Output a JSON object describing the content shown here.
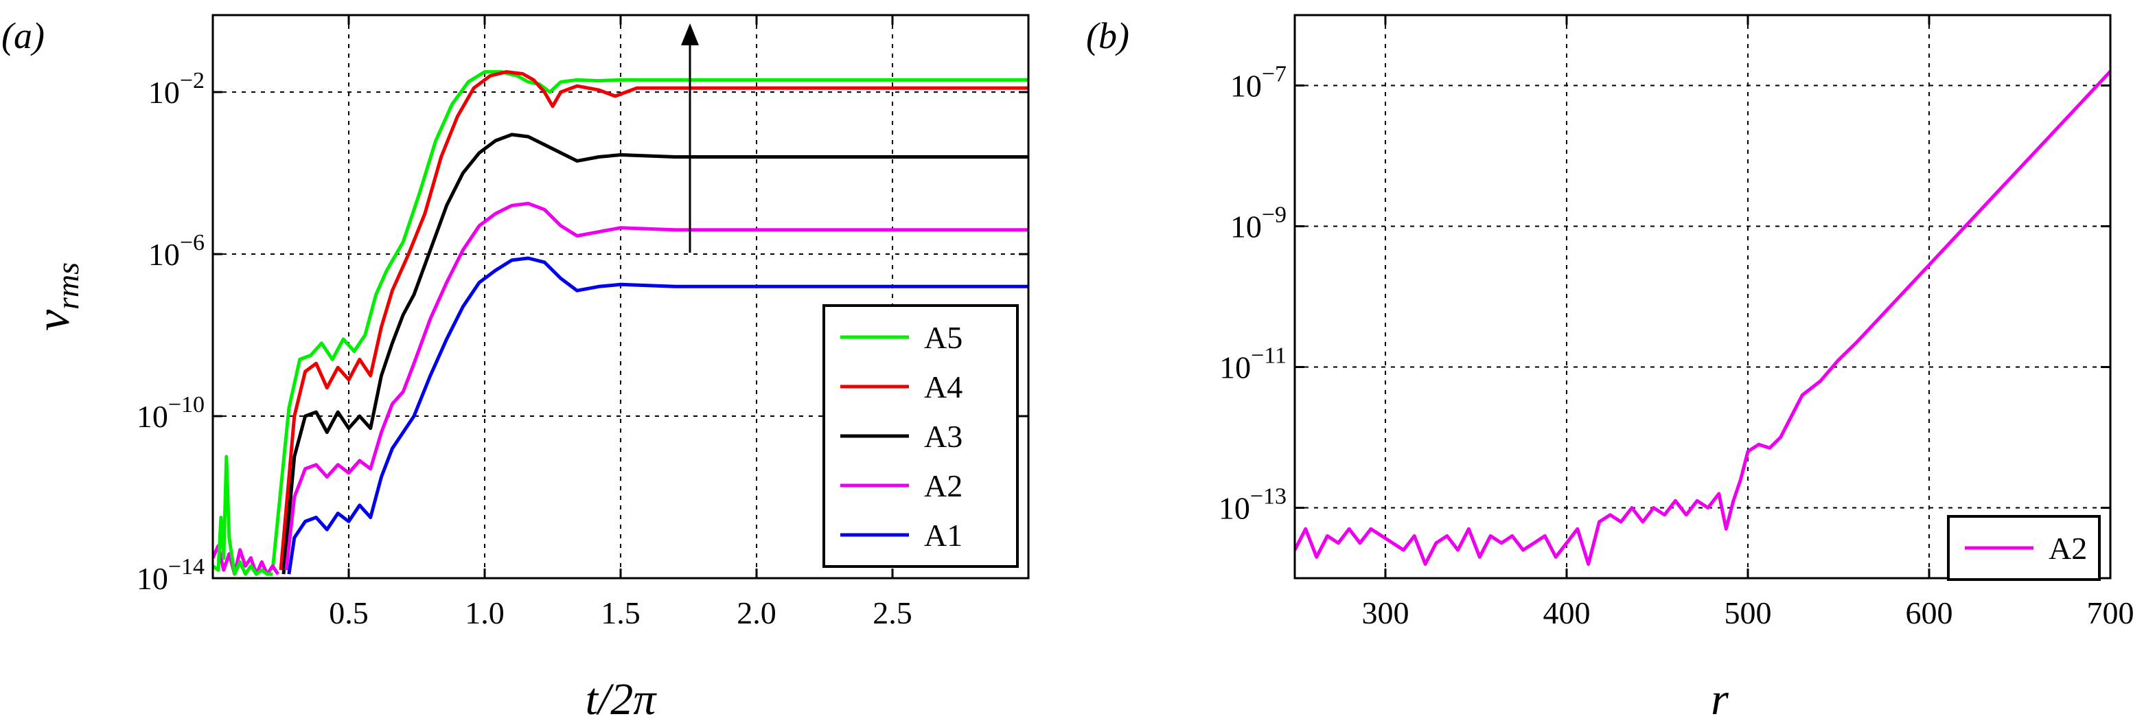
{
  "panels": [
    {
      "label": "(a)"
    },
    {
      "label": "(b)"
    }
  ],
  "chart_data": [
    {
      "type": "line",
      "panel": "(a)",
      "xlabel": "t/2π",
      "ylabel": "v_rms",
      "xlim": [
        0,
        3
      ],
      "ylim_log10": [
        -14,
        -0.1
      ],
      "yscale": "log",
      "grid": true,
      "legend_position": "bottom-right",
      "x_ticks": [
        0.5,
        1.0,
        1.5,
        2.0,
        2.5
      ],
      "x_tick_labels": [
        "0.5",
        "1.0",
        "1.5",
        "2.0",
        "2.5"
      ],
      "y_ticks": [
        -14,
        -10,
        -6,
        -2
      ],
      "y_tick_labels": [
        {
          "base": "10",
          "exp": "−14"
        },
        {
          "base": "10",
          "exp": "−10"
        },
        {
          "base": "10",
          "exp": "−6"
        },
        {
          "base": "10",
          "exp": "−2"
        }
      ],
      "annotation": "arrow pointing upward at t/2π ≈ 1.75 from 10^-6 to 10^-0.5 (increasing amplitude A1→A5)",
      "series": [
        {
          "name": "A5",
          "color": "#00ee00",
          "x": [
            0.22,
            0.28,
            0.32,
            0.36,
            0.4,
            0.44,
            0.48,
            0.52,
            0.56,
            0.6,
            0.64,
            0.7,
            0.76,
            0.82,
            0.88,
            0.94,
            1.0,
            1.06,
            1.12,
            1.16,
            1.2,
            1.24,
            1.28,
            1.34,
            1.42,
            1.5,
            1.6,
            1.8,
            2.2,
            2.6,
            3.0
          ],
          "y": [
            -13.8,
            -9.8,
            -8.6,
            -8.5,
            -8.2,
            -8.6,
            -8.1,
            -8.4,
            -8.0,
            -7.0,
            -6.4,
            -5.7,
            -4.5,
            -3.2,
            -2.3,
            -1.75,
            -1.5,
            -1.5,
            -1.6,
            -1.75,
            -1.8,
            -2.0,
            -1.75,
            -1.7,
            -1.72,
            -1.7,
            -1.7,
            -1.7,
            -1.7,
            -1.7,
            -1.7
          ]
        },
        {
          "name": "A4",
          "color": "#ee0000",
          "x": [
            0.25,
            0.3,
            0.34,
            0.38,
            0.42,
            0.46,
            0.5,
            0.54,
            0.58,
            0.62,
            0.66,
            0.72,
            0.78,
            0.84,
            0.9,
            0.96,
            1.02,
            1.08,
            1.14,
            1.18,
            1.22,
            1.25,
            1.28,
            1.34,
            1.42,
            1.48,
            1.56,
            1.7,
            2.0,
            2.5,
            3.0
          ],
          "y": [
            -13.8,
            -10.0,
            -8.9,
            -8.7,
            -9.3,
            -8.8,
            -9.1,
            -8.6,
            -9.0,
            -7.8,
            -6.9,
            -6.0,
            -5.0,
            -3.6,
            -2.6,
            -1.9,
            -1.6,
            -1.5,
            -1.55,
            -1.7,
            -2.0,
            -2.35,
            -2.0,
            -1.85,
            -1.95,
            -2.1,
            -1.9,
            -1.9,
            -1.9,
            -1.9,
            -1.9
          ]
        },
        {
          "name": "A3",
          "color": "#000000",
          "x": [
            0.26,
            0.3,
            0.34,
            0.38,
            0.42,
            0.46,
            0.5,
            0.54,
            0.58,
            0.62,
            0.66,
            0.7,
            0.74,
            0.8,
            0.86,
            0.92,
            0.98,
            1.04,
            1.1,
            1.16,
            1.22,
            1.28,
            1.34,
            1.42,
            1.5,
            1.7,
            2.0,
            2.5,
            3.0
          ],
          "y": [
            -13.9,
            -11.0,
            -10.0,
            -9.9,
            -10.4,
            -9.9,
            -10.3,
            -10.0,
            -10.3,
            -9.0,
            -8.2,
            -7.5,
            -7.0,
            -5.9,
            -4.8,
            -4.0,
            -3.5,
            -3.2,
            -3.05,
            -3.1,
            -3.3,
            -3.5,
            -3.7,
            -3.6,
            -3.55,
            -3.6,
            -3.6,
            -3.6,
            -3.6
          ]
        },
        {
          "name": "A2",
          "color": "#ee00ee",
          "x": [
            0.27,
            0.3,
            0.34,
            0.38,
            0.42,
            0.46,
            0.5,
            0.54,
            0.58,
            0.62,
            0.66,
            0.7,
            0.74,
            0.8,
            0.86,
            0.92,
            0.98,
            1.04,
            1.1,
            1.16,
            1.22,
            1.28,
            1.34,
            1.42,
            1.5,
            1.7,
            2.0,
            2.5,
            3.0
          ],
          "y": [
            -13.8,
            -12.0,
            -11.3,
            -11.2,
            -11.5,
            -11.2,
            -11.4,
            -11.1,
            -11.3,
            -10.4,
            -9.7,
            -9.4,
            -8.7,
            -7.6,
            -6.7,
            -5.9,
            -5.3,
            -5.0,
            -4.8,
            -4.75,
            -4.9,
            -5.3,
            -5.55,
            -5.45,
            -5.35,
            -5.4,
            -5.4,
            -5.4,
            -5.4
          ]
        },
        {
          "name": "A1",
          "color": "#0000ee",
          "x": [
            0.28,
            0.3,
            0.34,
            0.38,
            0.42,
            0.46,
            0.5,
            0.54,
            0.58,
            0.62,
            0.66,
            0.7,
            0.74,
            0.8,
            0.86,
            0.92,
            0.98,
            1.04,
            1.1,
            1.16,
            1.22,
            1.28,
            1.34,
            1.42,
            1.5,
            1.7,
            2.0,
            2.5,
            3.0
          ],
          "y": [
            -13.9,
            -13.0,
            -12.6,
            -12.5,
            -12.8,
            -12.4,
            -12.6,
            -12.2,
            -12.5,
            -11.5,
            -10.8,
            -10.4,
            -10.0,
            -9.0,
            -8.1,
            -7.3,
            -6.7,
            -6.4,
            -6.15,
            -6.1,
            -6.2,
            -6.6,
            -6.9,
            -6.8,
            -6.75,
            -6.8,
            -6.8,
            -6.8,
            -6.8
          ]
        },
        {
          "name": "",
          "color": "#ee00ee",
          "note": "early-time transient",
          "x": [
            0.0,
            0.02,
            0.04,
            0.06,
            0.08,
            0.1,
            0.12,
            0.14,
            0.16,
            0.18,
            0.2,
            0.22,
            0.24
          ],
          "y": [
            -13.5,
            -13.2,
            -13.8,
            -13.4,
            -13.9,
            -13.3,
            -13.7,
            -13.5,
            -13.9,
            -13.6,
            -13.9,
            -13.7,
            -13.9
          ]
        },
        {
          "name": "",
          "color": "#00ee00",
          "note": "early-time transient",
          "x": [
            0.0,
            0.02,
            0.03,
            0.04,
            0.05,
            0.06,
            0.08,
            0.1,
            0.12,
            0.14,
            0.16,
            0.18,
            0.2,
            0.22
          ],
          "y": [
            -13.7,
            -13.8,
            -12.5,
            -13.5,
            -11.0,
            -13.0,
            -13.9,
            -13.6,
            -13.9,
            -13.7,
            -13.9,
            -13.8,
            -13.9,
            -13.9
          ]
        }
      ]
    },
    {
      "type": "line",
      "panel": "(b)",
      "xlabel": "r",
      "ylabel": "",
      "xlim": [
        250,
        700
      ],
      "ylim_log10": [
        -14,
        -6
      ],
      "yscale": "log",
      "grid": true,
      "legend_position": "bottom-right",
      "x_ticks": [
        300,
        400,
        500,
        600,
        700
      ],
      "x_tick_labels": [
        "300",
        "400",
        "500",
        "600",
        "700"
      ],
      "y_ticks": [
        -13,
        -11,
        -9,
        -7
      ],
      "y_tick_labels": [
        {
          "base": "10",
          "exp": "−13"
        },
        {
          "base": "10",
          "exp": "−11"
        },
        {
          "base": "10",
          "exp": "−9"
        },
        {
          "base": "10",
          "exp": "−7"
        }
      ],
      "series": [
        {
          "name": "A2",
          "color": "#ee00ee",
          "x": [
            250,
            256,
            262,
            268,
            274,
            280,
            286,
            292,
            298,
            304,
            310,
            316,
            322,
            328,
            334,
            340,
            346,
            352,
            358,
            364,
            370,
            376,
            382,
            388,
            394,
            400,
            406,
            412,
            418,
            424,
            430,
            436,
            442,
            448,
            454,
            460,
            466,
            472,
            478,
            484,
            488,
            492,
            496,
            500,
            506,
            512,
            518,
            524,
            530,
            540,
            550,
            560,
            580,
            600,
            620,
            640,
            660,
            680,
            700
          ],
          "y": [
            -13.6,
            -13.3,
            -13.7,
            -13.4,
            -13.5,
            -13.3,
            -13.5,
            -13.3,
            -13.4,
            -13.5,
            -13.6,
            -13.4,
            -13.8,
            -13.5,
            -13.4,
            -13.6,
            -13.3,
            -13.7,
            -13.4,
            -13.5,
            -13.4,
            -13.6,
            -13.5,
            -13.4,
            -13.7,
            -13.5,
            -13.3,
            -13.8,
            -13.2,
            -13.1,
            -13.2,
            -13.0,
            -13.2,
            -13.0,
            -13.1,
            -12.9,
            -13.1,
            -12.9,
            -13.0,
            -12.8,
            -13.3,
            -12.9,
            -12.6,
            -12.2,
            -12.1,
            -12.15,
            -12.0,
            -11.7,
            -11.4,
            -11.2,
            -10.9,
            -10.65,
            -10.1,
            -9.55,
            -9.0,
            -8.45,
            -7.9,
            -7.35,
            -6.8
          ]
        }
      ]
    }
  ]
}
